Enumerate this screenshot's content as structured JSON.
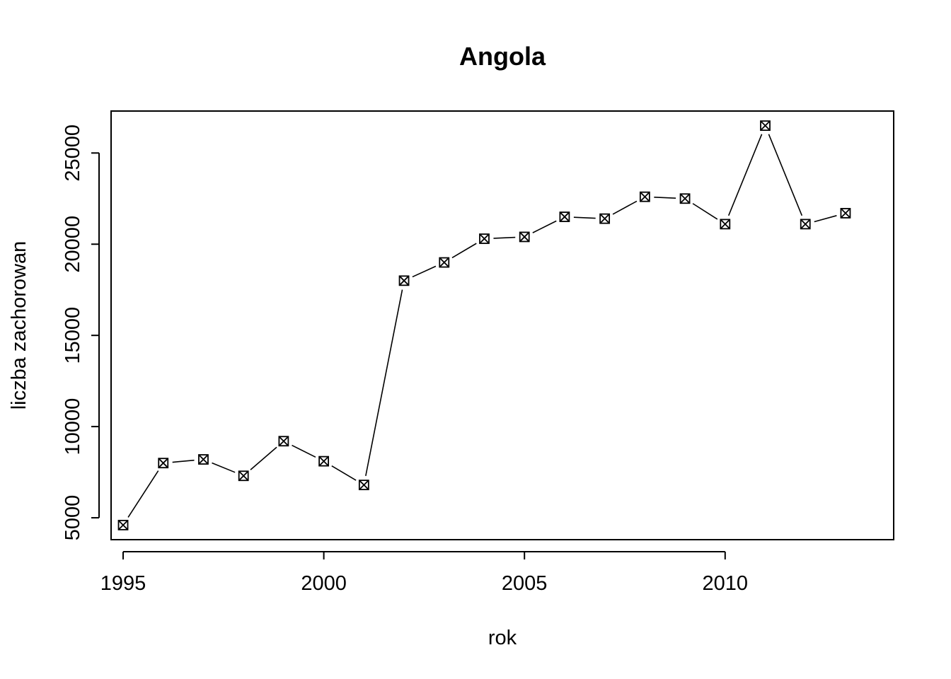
{
  "chart_data": {
    "type": "line",
    "title": "Angola",
    "xlabel": "rok",
    "ylabel": "liczba zachorowan",
    "x": [
      1995,
      1996,
      1997,
      1998,
      1999,
      2000,
      2001,
      2002,
      2003,
      2004,
      2005,
      2006,
      2007,
      2008,
      2009,
      2010,
      2011,
      2012,
      2013
    ],
    "series": [
      {
        "values": [
          4600,
          8000,
          8200,
          7300,
          9200,
          8100,
          6800,
          18000,
          19000,
          20300,
          20400,
          21500,
          21400,
          22600,
          22500,
          21100,
          26500,
          21100,
          21700
        ]
      }
    ],
    "xlim": [
      1994.7,
      2014.2
    ],
    "ylim": [
      3800,
      27300
    ],
    "x_ticks": [
      "1995",
      "2000",
      "2005",
      "2010"
    ],
    "y_ticks": [
      "5000",
      "10000",
      "15000",
      "20000",
      "25000"
    ],
    "marker": "boxed-x",
    "line_style": "line with gaps at points",
    "grid": false,
    "legend": "none"
  }
}
